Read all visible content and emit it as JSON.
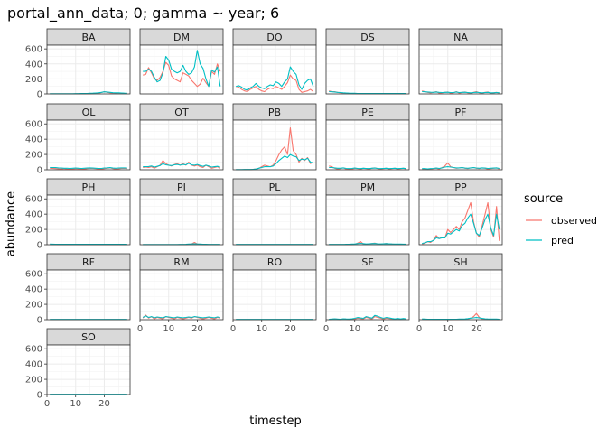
{
  "chart_data": {
    "type": "line",
    "title": "portal_ann_data; 0; gamma ~ year; 6",
    "xlabel": "timestep",
    "ylabel": "abundance",
    "xlim": [
      0,
      29
    ],
    "ylim": [
      0,
      650
    ],
    "x_ticks": [
      0,
      10,
      20
    ],
    "x_tick_labels": [
      "0",
      "10",
      "20"
    ],
    "y_ticks": [
      0,
      200,
      400,
      600
    ],
    "y_tick_labels": [
      "0",
      "200",
      "400",
      "600"
    ],
    "grid": true,
    "legend": {
      "title": "source",
      "placement": "right",
      "entries": [
        {
          "label": "observed",
          "color": "#F8766D"
        },
        {
          "label": "pred",
          "color": "#00BFC4"
        }
      ]
    },
    "x": [
      1,
      2,
      3,
      4,
      5,
      6,
      7,
      8,
      9,
      10,
      11,
      12,
      13,
      14,
      15,
      16,
      17,
      18,
      19,
      20,
      21,
      22,
      23,
      24,
      25,
      26,
      27,
      28
    ],
    "panels": [
      {
        "name": "BA",
        "observed": [
          0,
          0,
          0,
          0,
          0,
          0,
          0,
          0,
          0,
          0,
          0,
          0,
          0,
          0,
          2,
          4,
          6,
          10,
          18,
          30,
          22,
          15,
          10,
          6,
          12,
          8,
          6,
          4
        ],
        "pred": [
          2,
          2,
          2,
          2,
          2,
          3,
          3,
          3,
          3,
          4,
          4,
          5,
          5,
          6,
          8,
          10,
          12,
          15,
          20,
          28,
          25,
          20,
          16,
          14,
          15,
          12,
          10,
          8
        ]
      },
      {
        "name": "DM",
        "observed": [
          250,
          260,
          350,
          280,
          200,
          180,
          220,
          300,
          420,
          380,
          240,
          200,
          180,
          160,
          280,
          260,
          240,
          180,
          140,
          100,
          130,
          210,
          150,
          100,
          300,
          260,
          400,
          300
        ],
        "pred": [
          300,
          300,
          330,
          300,
          220,
          160,
          180,
          280,
          500,
          450,
          330,
          300,
          280,
          300,
          380,
          300,
          260,
          280,
          360,
          580,
          400,
          340,
          200,
          100,
          320,
          290,
          360,
          100
        ]
      },
      {
        "name": "DO",
        "observed": [
          80,
          90,
          60,
          40,
          30,
          60,
          80,
          100,
          60,
          40,
          30,
          60,
          80,
          70,
          100,
          80,
          60,
          100,
          150,
          250,
          200,
          180,
          60,
          20,
          30,
          40,
          60,
          30
        ],
        "pred": [
          100,
          110,
          90,
          60,
          50,
          80,
          100,
          140,
          100,
          80,
          70,
          100,
          120,
          110,
          160,
          140,
          100,
          160,
          200,
          360,
          300,
          260,
          120,
          60,
          140,
          180,
          200,
          100
        ]
      },
      {
        "name": "DS",
        "observed": [
          40,
          30,
          30,
          20,
          15,
          10,
          8,
          6,
          5,
          4,
          3,
          3,
          2,
          2,
          2,
          2,
          2,
          3,
          3,
          3,
          2,
          2,
          2,
          2,
          2,
          2,
          2,
          2
        ],
        "pred": [
          30,
          28,
          25,
          20,
          18,
          14,
          12,
          10,
          8,
          8,
          6,
          6,
          5,
          5,
          5,
          5,
          5,
          5,
          5,
          5,
          5,
          5,
          5,
          5,
          5,
          5,
          5,
          5
        ]
      },
      {
        "name": "NA",
        "observed": [
          40,
          30,
          20,
          15,
          20,
          30,
          10,
          15,
          20,
          25,
          10,
          15,
          30,
          10,
          20,
          25,
          15,
          10,
          20,
          30,
          15,
          10,
          20,
          25,
          10,
          15,
          20,
          10
        ],
        "pred": [
          30,
          28,
          25,
          22,
          20,
          25,
          20,
          18,
          20,
          22,
          18,
          18,
          25,
          18,
          20,
          22,
          18,
          15,
          18,
          22,
          18,
          15,
          18,
          20,
          15,
          15,
          18,
          15
        ]
      },
      {
        "name": "OL",
        "observed": [
          20,
          18,
          15,
          12,
          10,
          15,
          8,
          5,
          10,
          15,
          12,
          10,
          8,
          15,
          20,
          18,
          15,
          10,
          8,
          15,
          20,
          25,
          15,
          10,
          12,
          18,
          20,
          15
        ],
        "pred": [
          30,
          30,
          28,
          25,
          22,
          20,
          20,
          18,
          20,
          22,
          20,
          18,
          20,
          22,
          25,
          22,
          20,
          18,
          18,
          22,
          25,
          28,
          22,
          20,
          22,
          25,
          25,
          22
        ]
      },
      {
        "name": "OT",
        "observed": [
          30,
          35,
          30,
          40,
          20,
          40,
          60,
          120,
          80,
          60,
          50,
          70,
          80,
          60,
          80,
          60,
          100,
          60,
          50,
          60,
          40,
          30,
          60,
          40,
          20,
          30,
          40,
          20
        ],
        "pred": [
          40,
          40,
          42,
          50,
          35,
          45,
          55,
          80,
          65,
          60,
          55,
          65,
          70,
          60,
          70,
          65,
          85,
          65,
          60,
          70,
          55,
          45,
          60,
          50,
          35,
          40,
          45,
          35
        ]
      },
      {
        "name": "PB",
        "observed": [
          0,
          0,
          0,
          0,
          0,
          0,
          5,
          10,
          20,
          40,
          60,
          50,
          40,
          60,
          120,
          200,
          260,
          300,
          200,
          550,
          250,
          200,
          100,
          150,
          120,
          160,
          80,
          100
        ],
        "pred": [
          2,
          2,
          2,
          3,
          3,
          4,
          6,
          10,
          20,
          30,
          40,
          40,
          40,
          50,
          80,
          120,
          150,
          180,
          160,
          200,
          180,
          170,
          120,
          140,
          130,
          150,
          100,
          90
        ]
      },
      {
        "name": "PE",
        "observed": [
          50,
          40,
          20,
          10,
          15,
          25,
          10,
          5,
          10,
          20,
          15,
          10,
          20,
          15,
          10,
          20,
          25,
          15,
          10,
          15,
          20,
          10,
          15,
          20,
          10,
          15,
          20,
          10
        ],
        "pred": [
          30,
          30,
          25,
          20,
          20,
          25,
          18,
          15,
          18,
          22,
          18,
          15,
          20,
          18,
          15,
          20,
          22,
          18,
          15,
          18,
          20,
          15,
          18,
          20,
          15,
          18,
          20,
          15
        ]
      },
      {
        "name": "PF",
        "observed": [
          10,
          8,
          5,
          10,
          15,
          20,
          10,
          30,
          50,
          90,
          40,
          30,
          20,
          25,
          30,
          20,
          15,
          25,
          30,
          20,
          15,
          25,
          20,
          10,
          15,
          20,
          25,
          10
        ],
        "pred": [
          15,
          15,
          12,
          15,
          18,
          22,
          18,
          25,
          35,
          40,
          35,
          30,
          25,
          25,
          28,
          22,
          20,
          25,
          28,
          22,
          20,
          25,
          22,
          18,
          20,
          22,
          25,
          18
        ]
      },
      {
        "name": "PH",
        "observed": [
          2,
          3,
          2,
          1,
          1,
          2,
          1,
          1,
          2,
          2,
          1,
          1,
          1,
          1,
          1,
          1,
          1,
          1,
          1,
          1,
          1,
          1,
          1,
          1,
          1,
          1,
          1,
          1
        ],
        "pred": [
          8,
          7,
          6,
          5,
          5,
          5,
          5,
          5,
          5,
          5,
          5,
          5,
          5,
          5,
          5,
          5,
          5,
          5,
          5,
          5,
          5,
          5,
          5,
          5,
          5,
          5,
          5,
          5
        ]
      },
      {
        "name": "PI",
        "observed": [
          0,
          0,
          0,
          0,
          0,
          0,
          0,
          0,
          0,
          0,
          0,
          0,
          0,
          0,
          0,
          0,
          5,
          10,
          30,
          10,
          5,
          0,
          0,
          0,
          0,
          0,
          0,
          0
        ],
        "pred": [
          2,
          2,
          2,
          2,
          2,
          2,
          2,
          2,
          2,
          2,
          2,
          2,
          2,
          3,
          4,
          5,
          8,
          10,
          12,
          10,
          8,
          6,
          5,
          4,
          4,
          3,
          3,
          3
        ]
      },
      {
        "name": "PL",
        "observed": [
          0,
          0,
          0,
          0,
          0,
          0,
          0,
          0,
          0,
          0,
          0,
          0,
          0,
          0,
          0,
          0,
          0,
          0,
          0,
          0,
          0,
          0,
          0,
          0,
          0,
          0,
          0,
          0
        ],
        "pred": [
          3,
          3,
          3,
          3,
          3,
          3,
          3,
          3,
          3,
          3,
          3,
          3,
          3,
          3,
          3,
          3,
          3,
          3,
          3,
          3,
          3,
          3,
          3,
          3,
          3,
          3,
          3,
          3
        ]
      },
      {
        "name": "PM",
        "observed": [
          0,
          0,
          0,
          0,
          0,
          0,
          0,
          0,
          0,
          5,
          20,
          40,
          10,
          5,
          10,
          15,
          20,
          10,
          8,
          12,
          15,
          10,
          8,
          6,
          5,
          5,
          5,
          5
        ],
        "pred": [
          3,
          3,
          3,
          3,
          3,
          4,
          5,
          6,
          8,
          10,
          14,
          18,
          14,
          10,
          12,
          14,
          15,
          12,
          10,
          12,
          14,
          12,
          10,
          8,
          8,
          8,
          7,
          7
        ]
      },
      {
        "name": "PP",
        "observed": [
          10,
          20,
          40,
          30,
          60,
          120,
          80,
          100,
          90,
          200,
          160,
          200,
          240,
          200,
          300,
          350,
          450,
          550,
          300,
          150,
          100,
          250,
          400,
          550,
          200,
          100,
          500,
          50
        ],
        "pred": [
          15,
          25,
          40,
          40,
          55,
          90,
          80,
          90,
          90,
          150,
          140,
          170,
          200,
          180,
          250,
          280,
          350,
          400,
          280,
          150,
          120,
          220,
          330,
          400,
          220,
          120,
          400,
          200
        ]
      },
      {
        "name": "RF",
        "observed": [
          0,
          0,
          0,
          0,
          0,
          0,
          0,
          0,
          0,
          0,
          0,
          0,
          0,
          0,
          0,
          0,
          0,
          0,
          0,
          0,
          0,
          0,
          0,
          0,
          0,
          0,
          0,
          0
        ],
        "pred": [
          3,
          3,
          3,
          3,
          3,
          3,
          3,
          3,
          3,
          3,
          3,
          3,
          3,
          3,
          3,
          3,
          3,
          3,
          3,
          3,
          3,
          3,
          3,
          3,
          3,
          3,
          3,
          3
        ]
      },
      {
        "name": "RM",
        "observed": [
          20,
          60,
          20,
          40,
          10,
          30,
          20,
          10,
          40,
          30,
          20,
          10,
          30,
          20,
          10,
          20,
          30,
          20,
          40,
          30,
          20,
          10,
          20,
          30,
          20,
          10,
          30,
          20
        ],
        "pred": [
          30,
          50,
          30,
          40,
          25,
          35,
          30,
          25,
          40,
          35,
          30,
          25,
          35,
          30,
          25,
          30,
          35,
          30,
          40,
          35,
          30,
          25,
          30,
          35,
          30,
          25,
          35,
          30
        ]
      },
      {
        "name": "RO",
        "observed": [
          0,
          0,
          0,
          0,
          0,
          0,
          0,
          0,
          0,
          0,
          0,
          0,
          0,
          0,
          0,
          0,
          0,
          0,
          0,
          0,
          0,
          0,
          0,
          0,
          0,
          0,
          0,
          0
        ],
        "pred": [
          4,
          4,
          4,
          4,
          4,
          4,
          4,
          4,
          4,
          4,
          4,
          4,
          4,
          4,
          4,
          4,
          4,
          4,
          4,
          4,
          4,
          4,
          4,
          4,
          4,
          4,
          4,
          4
        ]
      },
      {
        "name": "SF",
        "observed": [
          0,
          5,
          10,
          5,
          0,
          10,
          5,
          0,
          5,
          10,
          20,
          15,
          10,
          30,
          20,
          10,
          40,
          30,
          20,
          10,
          20,
          15,
          10,
          5,
          10,
          5,
          10,
          5
        ],
        "pred": [
          5,
          8,
          12,
          8,
          5,
          12,
          10,
          8,
          12,
          18,
          28,
          22,
          18,
          40,
          30,
          20,
          55,
          45,
          30,
          18,
          28,
          22,
          15,
          10,
          15,
          10,
          15,
          10
        ]
      },
      {
        "name": "SH",
        "observed": [
          5,
          3,
          2,
          2,
          1,
          2,
          1,
          1,
          1,
          1,
          1,
          2,
          2,
          3,
          3,
          5,
          10,
          20,
          40,
          80,
          30,
          10,
          5,
          3,
          2,
          2,
          2,
          1
        ],
        "pred": [
          10,
          8,
          6,
          5,
          5,
          5,
          5,
          5,
          5,
          5,
          5,
          6,
          6,
          8,
          8,
          10,
          14,
          20,
          24,
          28,
          22,
          16,
          12,
          10,
          8,
          8,
          8,
          6
        ]
      },
      {
        "name": "SO",
        "observed": [
          0,
          0,
          0,
          0,
          0,
          0,
          0,
          0,
          0,
          0,
          0,
          0,
          0,
          0,
          0,
          0,
          0,
          0,
          0,
          0,
          0,
          0,
          0,
          0,
          0,
          0,
          0,
          0
        ],
        "pred": [
          3,
          3,
          3,
          3,
          3,
          3,
          3,
          3,
          3,
          3,
          3,
          3,
          3,
          3,
          3,
          3,
          3,
          3,
          3,
          3,
          3,
          3,
          3,
          3,
          3,
          3,
          3,
          3
        ]
      }
    ]
  }
}
